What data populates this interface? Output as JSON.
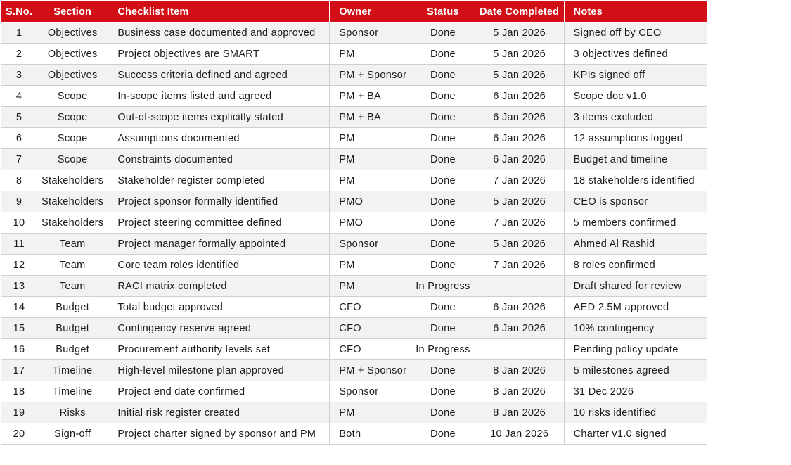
{
  "headers": {
    "sno": "S.No.",
    "section": "Section",
    "item": "Checklist Item",
    "owner": "Owner",
    "status": "Status",
    "date": "Date Completed",
    "notes": "Notes"
  },
  "colors": {
    "header_bg": "#d20f16",
    "header_text": "#ffffff",
    "stripe": "#f2f2f2"
  },
  "rows": [
    {
      "sno": "1",
      "section": "Objectives",
      "item": "Business case documented and approved",
      "owner": "Sponsor",
      "status": "Done",
      "date": "5 Jan 2026",
      "notes": "Signed off by CEO"
    },
    {
      "sno": "2",
      "section": "Objectives",
      "item": "Project objectives are SMART",
      "owner": "PM",
      "status": "Done",
      "date": "5 Jan 2026",
      "notes": "3 objectives defined"
    },
    {
      "sno": "3",
      "section": "Objectives",
      "item": "Success criteria defined and agreed",
      "owner": "PM + Sponsor",
      "status": "Done",
      "date": "5 Jan 2026",
      "notes": "KPIs signed off"
    },
    {
      "sno": "4",
      "section": "Scope",
      "item": "In-scope items listed and agreed",
      "owner": "PM + BA",
      "status": "Done",
      "date": "6 Jan 2026",
      "notes": "Scope doc v1.0"
    },
    {
      "sno": "5",
      "section": "Scope",
      "item": "Out-of-scope items explicitly stated",
      "owner": "PM + BA",
      "status": "Done",
      "date": "6 Jan 2026",
      "notes": "3 items excluded"
    },
    {
      "sno": "6",
      "section": "Scope",
      "item": "Assumptions documented",
      "owner": "PM",
      "status": "Done",
      "date": "6 Jan 2026",
      "notes": "12 assumptions logged"
    },
    {
      "sno": "7",
      "section": "Scope",
      "item": "Constraints documented",
      "owner": "PM",
      "status": "Done",
      "date": "6 Jan 2026",
      "notes": "Budget and timeline"
    },
    {
      "sno": "8",
      "section": "Stakeholders",
      "item": "Stakeholder register completed",
      "owner": "PM",
      "status": "Done",
      "date": "7 Jan 2026",
      "notes": "18 stakeholders identified"
    },
    {
      "sno": "9",
      "section": "Stakeholders",
      "item": "Project sponsor formally identified",
      "owner": "PMO",
      "status": "Done",
      "date": "5 Jan 2026",
      "notes": "CEO is sponsor"
    },
    {
      "sno": "10",
      "section": "Stakeholders",
      "item": "Project steering committee defined",
      "owner": "PMO",
      "status": "Done",
      "date": "7 Jan 2026",
      "notes": "5 members confirmed"
    },
    {
      "sno": "11",
      "section": "Team",
      "item": "Project manager formally appointed",
      "owner": "Sponsor",
      "status": "Done",
      "date": "5 Jan 2026",
      "notes": "Ahmed Al Rashid"
    },
    {
      "sno": "12",
      "section": "Team",
      "item": "Core team roles identified",
      "owner": "PM",
      "status": "Done",
      "date": "7 Jan 2026",
      "notes": "8 roles confirmed"
    },
    {
      "sno": "13",
      "section": "Team",
      "item": "RACI matrix completed",
      "owner": "PM",
      "status": "In Progress",
      "date": "",
      "notes": "Draft shared for review"
    },
    {
      "sno": "14",
      "section": "Budget",
      "item": "Total budget approved",
      "owner": "CFO",
      "status": "Done",
      "date": "6 Jan 2026",
      "notes": "AED 2.5M approved"
    },
    {
      "sno": "15",
      "section": "Budget",
      "item": "Contingency reserve agreed",
      "owner": "CFO",
      "status": "Done",
      "date": "6 Jan 2026",
      "notes": "10% contingency"
    },
    {
      "sno": "16",
      "section": "Budget",
      "item": "Procurement authority levels set",
      "owner": "CFO",
      "status": "In Progress",
      "date": "",
      "notes": "Pending policy update"
    },
    {
      "sno": "17",
      "section": "Timeline",
      "item": "High-level milestone plan approved",
      "owner": "PM + Sponsor",
      "status": "Done",
      "date": "8 Jan 2026",
      "notes": "5 milestones agreed"
    },
    {
      "sno": "18",
      "section": "Timeline",
      "item": "Project end date confirmed",
      "owner": "Sponsor",
      "status": "Done",
      "date": "8 Jan 2026",
      "notes": "31 Dec 2026"
    },
    {
      "sno": "19",
      "section": "Risks",
      "item": "Initial risk register created",
      "owner": "PM",
      "status": "Done",
      "date": "8 Jan 2026",
      "notes": "10 risks identified"
    },
    {
      "sno": "20",
      "section": "Sign-off",
      "item": "Project charter signed by sponsor and PM",
      "owner": "Both",
      "status": "Done",
      "date": "10 Jan 2026",
      "notes": "Charter v1.0 signed"
    }
  ]
}
